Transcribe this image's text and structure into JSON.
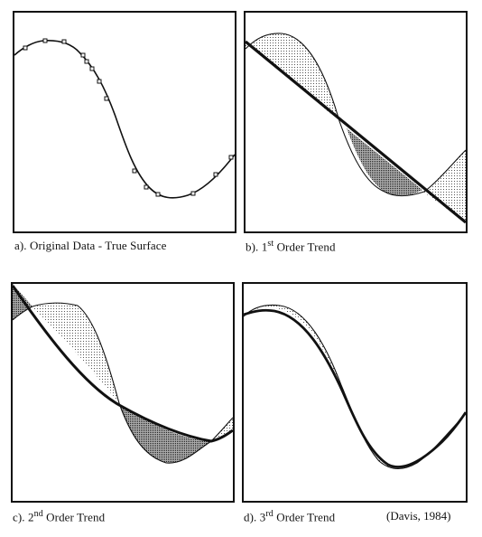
{
  "figure": {
    "panels": [
      {
        "id": "a",
        "caption_prefix": "a).  ",
        "caption_main": "Original Data - True Surface",
        "caption_sup": "",
        "caption_suffix": ""
      },
      {
        "id": "b",
        "caption_prefix": "b).   ",
        "caption_main": "1",
        "caption_sup": "st",
        "caption_suffix": " Order Trend"
      },
      {
        "id": "c",
        "caption_prefix": "c).  ",
        "caption_main": "2",
        "caption_sup": "nd",
        "caption_suffix": " Order Trend"
      },
      {
        "id": "d",
        "caption_prefix": "d).  ",
        "caption_main": "3",
        "caption_sup": "rd",
        "caption_suffix": " Order Trend"
      }
    ],
    "citation": "(Davis, 1984)"
  },
  "colors": {
    "line": "#111111",
    "light_fill": "#d9d9d9",
    "dark_fill": "#7a7a7a"
  }
}
